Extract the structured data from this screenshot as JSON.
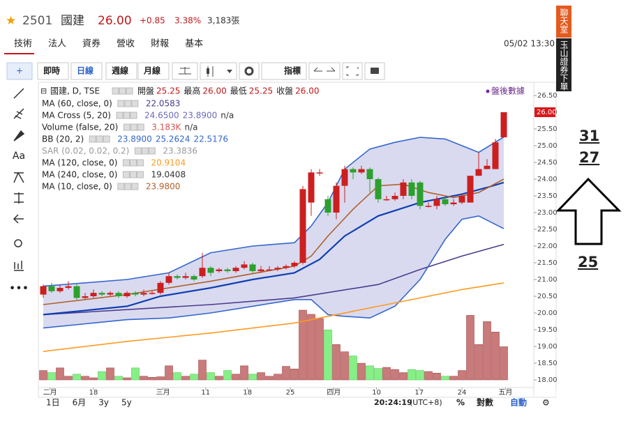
{
  "header": {
    "code": "2501",
    "name": "國建",
    "price": "26.00",
    "change": "+0.85",
    "percent": "3.38%",
    "volume": "3,183張"
  },
  "tabs": [
    "技術",
    "法人",
    "資券",
    "營收",
    "財報",
    "基本"
  ],
  "timestamp": "05/02 13:30",
  "toolbar": [
    "即時",
    "日線",
    "週線",
    "月線",
    "指標"
  ],
  "tool_text": "Aa",
  "legend_title": "國建, D, TSE",
  "ohlc": [
    {
      "label": "開盤",
      "value": "25.25"
    },
    {
      "label": "最高",
      "value": "26.00"
    },
    {
      "label": "最低",
      "value": "25.25"
    },
    {
      "label": "收盤",
      "value": "26.00"
    }
  ],
  "after_hours": "盤後數據",
  "indicators": [
    {
      "name": "MA (60, close, 0)",
      "values": [
        "22.0583"
      ],
      "color": "#4b3a8c",
      "lines": [
        {
          "x": [
            0,
            10,
            20,
            30,
            40,
            45,
            50,
            55
          ],
          "y": [
            19.95,
            20.1,
            20.25,
            20.45,
            20.85,
            21.3,
            21.7,
            22.05
          ]
        }
      ]
    },
    {
      "name": "MA Cross (5, 20)",
      "values": [
        "24.6500",
        "23.8900",
        "n/a"
      ],
      "color": "#6a6abf"
    },
    {
      "name": "Volume (false, 20)",
      "values": [
        "3.183K",
        "n/a"
      ],
      "color": "#d9534f"
    },
    {
      "name": "BB (20, 2)",
      "values": [
        "23.8900",
        "25.2624",
        "22.5176"
      ],
      "color": "#3366cc",
      "lines": [
        {
          "x": [
            0,
            10,
            15,
            20,
            25,
            30,
            32,
            34,
            36,
            39,
            42,
            45,
            48,
            50,
            52,
            55
          ],
          "y": [
            20.8,
            21.0,
            21.2,
            21.8,
            22.0,
            22.1,
            22.6,
            23.3,
            24.3,
            24.9,
            25.1,
            25.25,
            25.2,
            25.0,
            24.8,
            25.26
          ]
        },
        {
          "x": [
            0,
            10,
            15,
            20,
            25,
            30,
            32,
            34,
            36,
            39,
            42,
            45,
            48,
            50,
            52,
            55
          ],
          "y": [
            19.55,
            19.8,
            19.85,
            20.0,
            20.2,
            20.4,
            20.4,
            19.95,
            19.9,
            19.85,
            20.2,
            21.0,
            22.2,
            22.8,
            22.9,
            22.52
          ]
        },
        {
          "x": [
            0,
            10,
            14,
            20,
            25,
            30,
            33,
            36,
            40,
            45,
            50,
            53,
            55
          ],
          "y": [
            19.95,
            20.2,
            20.5,
            20.75,
            21.0,
            21.2,
            21.6,
            22.3,
            22.9,
            23.3,
            23.55,
            23.75,
            23.9
          ]
        }
      ]
    },
    {
      "name": "SAR (0.02, 0.02, 0.2)",
      "values": [
        "23.3836"
      ],
      "color": "#999999"
    },
    {
      "name": "MA (120, close, 0)",
      "values": [
        "20.9104"
      ],
      "color": "#ff9a1f",
      "lines": [
        {
          "x": [
            0,
            10,
            20,
            30,
            40,
            50,
            55
          ],
          "y": [
            18.85,
            19.15,
            19.4,
            19.7,
            20.2,
            20.7,
            20.9
          ]
        }
      ]
    },
    {
      "name": "MA (240, close, 0)",
      "values": [
        "19.0408"
      ],
      "color": "#333333"
    },
    {
      "name": "MA (10, close, 0)",
      "values": [
        "23.9800"
      ],
      "color": "#b0602a",
      "lines": [
        {
          "x": [
            0,
            10,
            20,
            30,
            32,
            34,
            37,
            40,
            43,
            46,
            49,
            52,
            55
          ],
          "y": [
            20.25,
            20.55,
            20.95,
            21.4,
            21.7,
            22.3,
            23.1,
            23.8,
            23.85,
            23.6,
            23.45,
            23.6,
            24.0
          ]
        }
      ]
    }
  ],
  "chart_data": {
    "type": "candlestick",
    "up_color": "#cc1f1f",
    "down_color": "#2ca02c",
    "candles": {
      "open": [
        20.55,
        20.8,
        20.65,
        20.75,
        20.8,
        20.45,
        20.5,
        20.6,
        20.55,
        20.6,
        20.5,
        20.6,
        20.55,
        20.6,
        20.6,
        20.9,
        21.1,
        21.05,
        21.1,
        21.1,
        21.35,
        21.25,
        21.3,
        21.25,
        21.35,
        21.45,
        21.25,
        21.3,
        21.3,
        21.35,
        21.4,
        21.5,
        23.3,
        24.2,
        23.4,
        23.0,
        23.8,
        24.3,
        24.2,
        24.3,
        24.0,
        23.4,
        23.4,
        23.5,
        23.9,
        23.9,
        23.2,
        23.2,
        23.4,
        23.25,
        23.3,
        23.3,
        24.1,
        24.3,
        24.3,
        25.25
      ],
      "high": [
        20.85,
        20.9,
        20.85,
        20.95,
        20.85,
        20.6,
        20.7,
        20.65,
        20.65,
        20.65,
        20.65,
        20.65,
        20.7,
        20.65,
        20.95,
        21.2,
        21.15,
        21.2,
        21.15,
        21.8,
        21.4,
        21.35,
        21.35,
        21.4,
        21.55,
        21.5,
        21.4,
        21.4,
        21.4,
        21.45,
        21.55,
        23.8,
        24.3,
        24.3,
        23.5,
        23.9,
        24.4,
        24.35,
        24.4,
        24.35,
        24.05,
        23.5,
        23.6,
        24.0,
        24.0,
        23.95,
        23.3,
        23.5,
        23.45,
        23.4,
        23.55,
        24.1,
        24.8,
        24.6,
        25.2,
        26.0
      ],
      "low": [
        20.45,
        20.6,
        20.6,
        20.7,
        20.4,
        20.4,
        20.45,
        20.5,
        20.5,
        20.45,
        20.45,
        20.5,
        20.5,
        20.55,
        20.55,
        20.85,
        21.0,
        21.0,
        20.95,
        21.05,
        21.1,
        21.2,
        21.2,
        21.2,
        21.3,
        21.2,
        21.2,
        21.25,
        21.25,
        21.3,
        21.35,
        21.45,
        22.9,
        24.1,
        22.9,
        22.8,
        23.3,
        24.0,
        24.15,
        23.6,
        23.3,
        23.35,
        23.35,
        23.4,
        23.4,
        23.1,
        23.15,
        23.1,
        23.2,
        23.2,
        23.25,
        23.3,
        24.1,
        24.3,
        24.3,
        25.25
      ],
      "close": [
        20.8,
        20.65,
        20.75,
        20.8,
        20.45,
        20.5,
        20.6,
        20.55,
        20.6,
        20.5,
        20.6,
        20.55,
        20.6,
        20.6,
        20.9,
        21.1,
        21.05,
        21.1,
        21.0,
        21.35,
        21.2,
        21.3,
        21.25,
        21.35,
        21.45,
        21.25,
        21.3,
        21.3,
        21.35,
        21.4,
        21.5,
        23.7,
        24.2,
        24.2,
        23.0,
        23.8,
        24.3,
        24.2,
        24.3,
        24.0,
        23.4,
        23.4,
        23.5,
        23.9,
        23.5,
        23.2,
        23.2,
        23.4,
        23.25,
        23.3,
        23.5,
        24.1,
        24.3,
        24.4,
        25.1,
        26.0
      ],
      "volume": [
        900,
        700,
        1150,
        350,
        550,
        350,
        200,
        800,
        1150,
        350,
        200,
        1150,
        350,
        250,
        300,
        1350,
        700,
        350,
        550,
        1900,
        700,
        350,
        900,
        550,
        1350,
        550,
        700,
        350,
        550,
        1300,
        1050,
        6700,
        6300,
        5900,
        4800,
        3400,
        2700,
        2300,
        1600,
        1350,
        1100,
        1200,
        1000,
        700,
        1000,
        900,
        800,
        650,
        350,
        350,
        900,
        6200,
        3400,
        5600,
        4600,
        3183
      ]
    },
    "ylim": [
      18,
      26.5
    ],
    "yticks": [
      {
        "value": 26.5,
        "label": "26.50"
      },
      {
        "value": 26,
        "label": "26.00"
      },
      {
        "value": 25.5,
        "label": "25.50"
      },
      {
        "value": 25,
        "label": "25.00"
      },
      {
        "value": 24.5,
        "label": "24.50"
      },
      {
        "value": 24,
        "label": "24.00"
      },
      {
        "value": 23.5,
        "label": "23.50"
      },
      {
        "value": 23,
        "label": "23.00"
      },
      {
        "value": 22.5,
        "label": "22.50"
      },
      {
        "value": 22,
        "label": "22.00"
      },
      {
        "value": 21.5,
        "label": "21.50"
      },
      {
        "value": 21,
        "label": "21.00"
      },
      {
        "value": 20.5,
        "label": "20.50"
      },
      {
        "value": 20,
        "label": "20.00"
      },
      {
        "value": 19.5,
        "label": "19.50"
      },
      {
        "value": 19,
        "label": "19.00"
      },
      {
        "value": 18.5,
        "label": "18.50"
      },
      {
        "value": 18,
        "label": "18.00"
      }
    ],
    "xticks": [
      {
        "value": 0.8,
        "label": "二月"
      },
      {
        "value": 6,
        "label": "18"
      },
      {
        "value": 14.3,
        "label": "三月"
      },
      {
        "value": 19.4,
        "label": "11"
      },
      {
        "value": 24.4,
        "label": "18"
      },
      {
        "value": 29.5,
        "label": "25"
      },
      {
        "value": 34.7,
        "label": "四月"
      },
      {
        "value": 39.8,
        "label": "10"
      },
      {
        "value": 44.9,
        "label": "17"
      },
      {
        "value": 50,
        "label": "24"
      },
      {
        "value": 55.2,
        "label": "五月"
      }
    ],
    "price_tag": {
      "value": 26,
      "label": "26.00"
    }
  },
  "bottom": {
    "ranges": [
      "1日",
      "6月",
      "3y",
      "5y"
    ],
    "clock": "20:24:19",
    "timezone": "(UTC+8)",
    "percent": "%",
    "log": "對數",
    "auto": "自動"
  },
  "side": {
    "numbers": [
      "31",
      "27",
      "25"
    ],
    "chat": "聊天室",
    "order": "玉山證券下單"
  }
}
